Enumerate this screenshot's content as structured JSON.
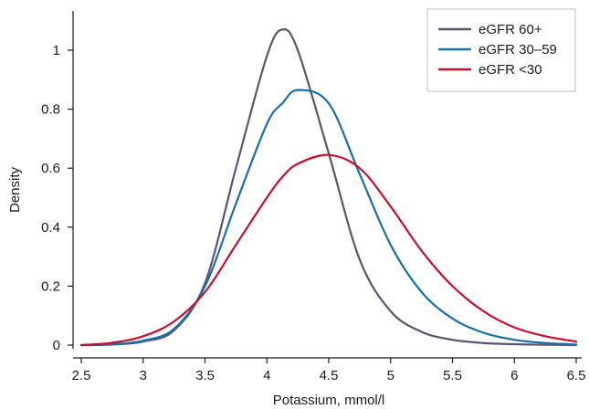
{
  "chart_data": {
    "type": "line",
    "xlabel": "Potassium, mmol/l",
    "ylabel": "Density",
    "xlim": [
      2.5,
      6.5
    ],
    "ylim": [
      0,
      1.1
    ],
    "xticks": [
      2.5,
      3,
      3.5,
      4,
      4.5,
      5,
      5.5,
      6,
      6.5
    ],
    "xtick_labels": [
      "2.5",
      "3",
      "3.5",
      "4",
      "4.5",
      "5",
      "5.5",
      "6",
      "6.5"
    ],
    "yticks": [
      0,
      0.2,
      0.4,
      0.6,
      0.8,
      1
    ],
    "ytick_labels": [
      "0",
      "0.2",
      "0.4",
      "0.6",
      "0.8",
      "1"
    ],
    "grid": false,
    "legend_position": "top-right",
    "x": [
      2.5,
      2.75,
      3.0,
      3.25,
      3.5,
      3.75,
      4.0,
      4.125,
      4.25,
      4.5,
      4.75,
      5.0,
      5.25,
      5.5,
      5.75,
      6.0,
      6.25,
      6.5
    ],
    "series": [
      {
        "name": "eGFR 60+",
        "color": "#5b5470",
        "values": [
          0.0,
          0.002,
          0.012,
          0.05,
          0.21,
          0.6,
          0.98,
          1.07,
          1.0,
          0.65,
          0.29,
          0.115,
          0.045,
          0.018,
          0.007,
          0.003,
          0.001,
          0.0
        ]
      },
      {
        "name": "eGFR 30–59",
        "color": "#1a6fa8",
        "values": [
          0.0,
          0.003,
          0.015,
          0.055,
          0.2,
          0.48,
          0.75,
          0.82,
          0.865,
          0.82,
          0.58,
          0.34,
          0.18,
          0.09,
          0.042,
          0.018,
          0.007,
          0.002
        ]
      },
      {
        "name": "eGFR <30",
        "color": "#c8102e",
        "values": [
          0.0,
          0.008,
          0.03,
          0.08,
          0.18,
          0.34,
          0.5,
          0.57,
          0.615,
          0.645,
          0.6,
          0.47,
          0.32,
          0.2,
          0.115,
          0.06,
          0.03,
          0.012
        ]
      }
    ]
  }
}
